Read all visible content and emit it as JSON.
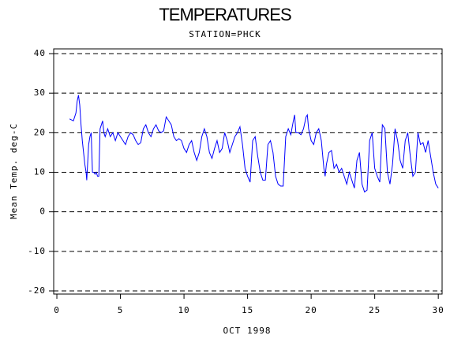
{
  "chart_data": {
    "type": "line",
    "title": "TEMPERATURES",
    "subtitle": "STATION=PHCK",
    "x_label": "OCT 1998",
    "y_label": "Mean Temp. deg-C",
    "color": "#0000ff",
    "grid": true,
    "xlim": [
      -0.25,
      30.3
    ],
    "ylim": [
      -20.8,
      41.2
    ],
    "xticks": [
      0,
      5,
      10,
      15,
      20,
      25,
      30
    ],
    "yticks": [
      -20,
      -10,
      0,
      10,
      20,
      30,
      40
    ],
    "x": [
      1.0,
      1.3,
      1.5,
      1.6,
      1.7,
      1.8,
      1.9,
      2.0,
      2.1,
      2.2,
      2.3,
      2.35,
      2.5,
      2.6,
      2.7,
      2.8,
      2.9,
      3.0,
      3.1,
      3.2,
      3.3,
      3.4,
      3.5,
      3.6,
      3.7,
      3.8,
      4.0,
      4.2,
      4.4,
      4.6,
      4.8,
      5.0,
      5.2,
      5.4,
      5.6,
      5.8,
      6.0,
      6.2,
      6.4,
      6.6,
      6.8,
      7.0,
      7.2,
      7.4,
      7.6,
      7.8,
      8.0,
      8.2,
      8.4,
      8.6,
      8.8,
      9.0,
      9.2,
      9.4,
      9.6,
      9.8,
      10.0,
      10.2,
      10.4,
      10.6,
      10.8,
      11.0,
      11.2,
      11.4,
      11.6,
      11.8,
      12.0,
      12.2,
      12.4,
      12.6,
      12.8,
      13.0,
      13.2,
      13.4,
      13.6,
      13.8,
      14.0,
      14.2,
      14.4,
      14.6,
      14.8,
      15.0,
      15.2,
      15.4,
      15.6,
      15.8,
      16.0,
      16.2,
      16.4,
      16.6,
      16.8,
      17.0,
      17.2,
      17.4,
      17.6,
      17.8,
      18.0,
      18.2,
      18.4,
      18.6,
      18.7,
      18.8,
      19.0,
      19.2,
      19.4,
      19.6,
      19.7,
      19.8,
      20.0,
      20.2,
      20.4,
      20.6,
      20.8,
      21.0,
      21.1,
      21.2,
      21.4,
      21.6,
      21.8,
      22.0,
      22.2,
      22.4,
      22.6,
      22.8,
      23.0,
      23.2,
      23.4,
      23.6,
      23.8,
      24.0,
      24.2,
      24.4,
      24.6,
      24.8,
      25.0,
      25.2,
      25.4,
      25.6,
      25.8,
      26.0,
      26.2,
      26.4,
      26.6,
      26.8,
      27.0,
      27.2,
      27.4,
      27.6,
      27.8,
      28.0,
      28.2,
      28.4,
      28.6,
      28.8,
      29.0,
      29.2,
      29.4,
      29.6,
      29.8,
      30.0
    ],
    "values": [
      23.5,
      23,
      25,
      28,
      29.5,
      27,
      22,
      18,
      15,
      12,
      10,
      8,
      17,
      19,
      20,
      10,
      10,
      9.5,
      10,
      9,
      9,
      21,
      22,
      23,
      20,
      19,
      21,
      19,
      20,
      18,
      20,
      19,
      18,
      17,
      19,
      20,
      19.5,
      18,
      17,
      17.5,
      21,
      22,
      20,
      19,
      21,
      22,
      20.5,
      20,
      20.5,
      24,
      23,
      22,
      19,
      18,
      18.5,
      18,
      16,
      15,
      17,
      18,
      15,
      13,
      15,
      19,
      21,
      19,
      15,
      13.5,
      16,
      18,
      15,
      16,
      20,
      18,
      15,
      17,
      19,
      20,
      21.5,
      17,
      11,
      9,
      7.5,
      18,
      19,
      14,
      10,
      8,
      8,
      17,
      18,
      15,
      9,
      7,
      6.5,
      6.5,
      19,
      21,
      19.5,
      23,
      24.5,
      20,
      20,
      19.5,
      21,
      24,
      24.5,
      21,
      18,
      17,
      20,
      21,
      18,
      11,
      9,
      12,
      15,
      15.5,
      11,
      12,
      10,
      11,
      9,
      7,
      10,
      8,
      6,
      13,
      15,
      7,
      5,
      5.5,
      18,
      20,
      11,
      9,
      7.5,
      22,
      21,
      10,
      7,
      12,
      21,
      18,
      13,
      11,
      18,
      20,
      14,
      9,
      10,
      20,
      17,
      17.5,
      15,
      18,
      14,
      10,
      7,
      6
    ]
  }
}
